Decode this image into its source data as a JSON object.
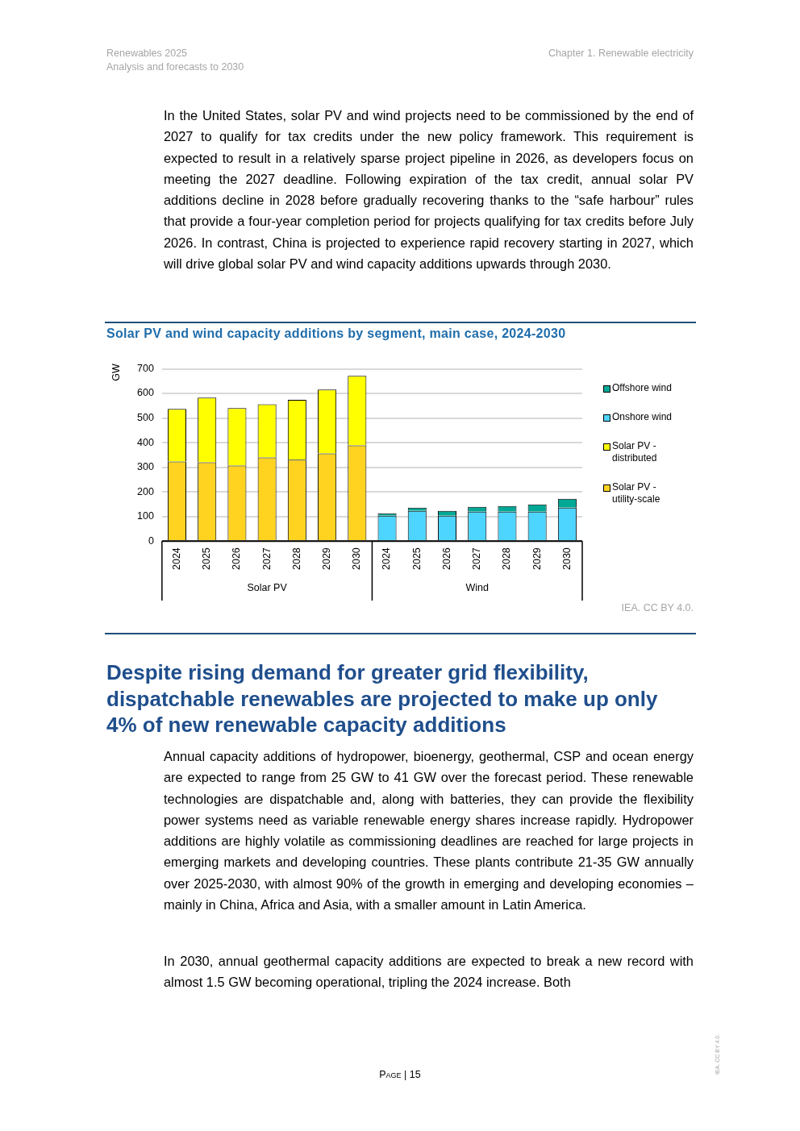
{
  "chart_data": {
    "type": "bar",
    "stacked": true,
    "title": "Solar PV and wind capacity additions by segment, main case, 2024-2030",
    "ylabel": "GW",
    "categories": [
      "2024",
      "2025",
      "2026",
      "2027",
      "2028",
      "2029",
      "2030",
      "2024",
      "2025",
      "2026",
      "2027",
      "2028",
      "2029",
      "2030"
    ],
    "series": [
      {
        "name": "Solar PV - utility-scale",
        "color": "#ffd320",
        "values": [
          323,
          320,
          307,
          340,
          331,
          356,
          389,
          null,
          null,
          null,
          null,
          null,
          null,
          null
        ]
      },
      {
        "name": "Solar PV - distributed",
        "color": "#ffff00",
        "values": [
          214,
          263,
          233,
          216,
          243,
          260,
          282,
          null,
          null,
          null,
          null,
          null,
          null,
          null
        ]
      },
      {
        "name": "Onshore wind",
        "color": "#4dd5ff",
        "values": [
          null,
          null,
          null,
          null,
          null,
          null,
          null,
          103,
          123,
          103,
          119,
          119,
          119,
          136
        ]
      },
      {
        "name": "Offshore wind",
        "color": "#00a896",
        "values": [
          null,
          null,
          null,
          null,
          null,
          null,
          null,
          10,
          13,
          20,
          20,
          23,
          30,
          36
        ]
      }
    ],
    "ylim": [
      0,
      700
    ],
    "yticks": [
      0,
      100,
      200,
      300,
      400,
      500,
      600,
      700
    ],
    "grid": "y",
    "legend": "right",
    "annotations": [
      "Solar PV",
      "Wind",
      "IEA. CC BY 4.0.",
      "Renewables 2025",
      "Analysis and forecasts to 2030",
      "Chapter 1. Renewable electricity",
      "In the United States, solar PV and wind projects need to be commissioned by the end of 2027 to qualify for tax credits under the new policy framework. This requirement is expected to result in a relatively sparse project pipeline in 2026, as developers focus on meeting the 2027 deadline. Following expiration of the tax credit, annual solar PV additions decline in 2028 before gradually recovering thanks to the “safe harbour” rules that provide a four-year completion period for projects qualifying for tax credits before July 2026. In contrast, China is projected to experience rapid recovery starting in 2027, which will drive global solar PV and wind capacity additions upwards through 2030.",
      "Despite rising demand for greater grid flexibility, dispatchable renewables are projected to make up only 4% of new renewable capacity additions",
      "Annual capacity additions of hydropower, bioenergy, geothermal, CSP and ocean energy are expected to range from 25 GW to 41 GW over the forecast period. These renewable technologies are dispatchable and, along with batteries, they can provide the flexibility power systems need as variable renewable energy shares increase rapidly. Hydropower additions are highly volatile as commissioning deadlines are reached for large projects in emerging markets and developing countries. These plants contribute 21-35 GW annually over 2025-2030, with almost 90% of the growth in emerging and developing economies – mainly in China, Africa and Asia, with a smaller amount in Latin America.",
      "In 2030, annual geothermal capacity additions are expected to break a new record with almost 1.5 GW becoming operational, tripling the 2024 increase. Both",
      "Page | 15",
      "IEA. CC BY 4.0."
    ]
  }
}
